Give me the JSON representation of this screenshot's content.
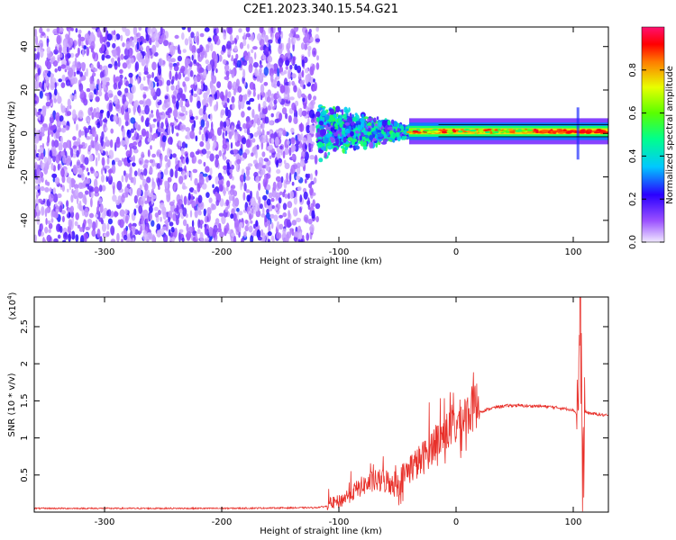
{
  "title": "C2E1.2023.340.15.54.G21",
  "colors": {
    "snr_line": "#e8302a",
    "scatter_dots": "#6a1ae8"
  },
  "chart_data": [
    {
      "type": "heatmap",
      "xlabel": "Height of straight line (km)",
      "ylabel": "Frequency (Hz)",
      "xlim": [
        -360,
        130
      ],
      "ylim": [
        -50,
        49
      ],
      "xticks": [
        -300,
        -200,
        -100,
        0,
        100
      ],
      "yticks": [
        -40,
        -20,
        0,
        20,
        40
      ],
      "colorbar": {
        "label": "Normalized spectral amplitude",
        "range": [
          0.0,
          1.0
        ],
        "ticks": [
          0.0,
          0.2,
          0.4,
          0.6,
          0.8
        ]
      },
      "description_regions": [
        {
          "x_range": [
            -360,
            -118
          ],
          "freq_range": [
            -50,
            49
          ],
          "amplitude": 0.15
        },
        {
          "x_range": [
            -118,
            -40
          ],
          "freq_range": [
            -15,
            14
          ],
          "amplitude": 0.35
        },
        {
          "x_range": [
            -40,
            130
          ],
          "freq_range": [
            -2,
            4
          ],
          "amplitude": 0.9
        }
      ]
    },
    {
      "type": "line",
      "xlabel": "Height of straight line (km)",
      "ylabel": "SNR (10 * v/v)",
      "yscale_label": "(x10",
      "yscale_exp": "4",
      "yscale_close": ")",
      "xlim": [
        -360,
        130
      ],
      "ylim": [
        0,
        2.9
      ],
      "xticks": [
        -300,
        -200,
        -100,
        0,
        100
      ],
      "yticks": [
        0.5,
        1.0,
        1.5,
        2.0,
        2.5
      ],
      "series": [
        {
          "x": [
            -360,
            -300,
            -200,
            -120,
            -100,
            -90,
            -80,
            -70,
            -60,
            -50,
            -40,
            -30,
            -20,
            -10,
            0,
            10,
            20,
            30,
            40,
            50,
            60,
            70,
            80,
            90,
            100,
            104,
            106,
            108,
            110,
            115,
            120,
            130
          ],
          "y": [
            0.05,
            0.05,
            0.05,
            0.06,
            0.1,
            0.2,
            0.3,
            0.35,
            0.35,
            0.3,
            0.5,
            0.6,
            0.8,
            0.95,
            1.05,
            1.2,
            1.35,
            1.4,
            1.43,
            1.44,
            1.43,
            1.43,
            1.42,
            1.4,
            1.38,
            1.3,
            2.9,
            0.3,
            1.35,
            1.33,
            1.32,
            1.3
          ]
        }
      ]
    }
  ]
}
